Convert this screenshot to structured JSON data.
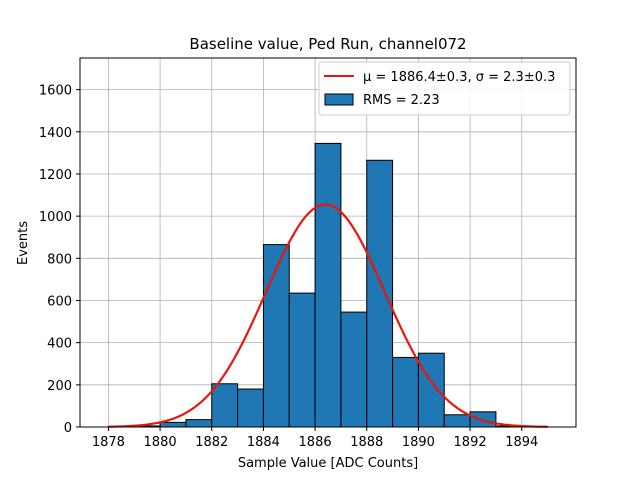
{
  "chart_data": {
    "type": "bar",
    "title": "Baseline value, Ped Run, channel072",
    "xlabel": "Sample Value [ADC Counts]",
    "ylabel": "Events",
    "xlim": [
      1876.9,
      1896.1
    ],
    "ylim": [
      0,
      1750
    ],
    "xticks": [
      1878,
      1880,
      1882,
      1884,
      1886,
      1888,
      1890,
      1892,
      1894
    ],
    "yticks": [
      0,
      200,
      400,
      600,
      800,
      1000,
      1200,
      1400,
      1600
    ],
    "grid": true,
    "bin_edges": [
      1878.0,
      1879.0,
      1880.0,
      1881.0,
      1882.0,
      1883.0,
      1884.0,
      1885.0,
      1886.0,
      1887.0,
      1888.0,
      1889.0,
      1890.0,
      1891.0,
      1892.0,
      1893.0,
      1894.0,
      1895.0
    ],
    "values": [
      2,
      5,
      22,
      35,
      205,
      180,
      865,
      635,
      1345,
      545,
      1265,
      330,
      350,
      58,
      72,
      5,
      2
    ],
    "bar_color": "#1f77b4",
    "bar_edge_color": "#000000",
    "fit": {
      "mu": 1886.4,
      "sigma": 2.3,
      "amplitude": 1055,
      "range": [
        1878,
        1895
      ],
      "color": "#e8170e"
    },
    "legend": {
      "position": "top-right",
      "fit_label": "μ = 1886.4±0.3, σ = 2.3±0.3",
      "hist_label": "RMS = 2.23"
    }
  }
}
